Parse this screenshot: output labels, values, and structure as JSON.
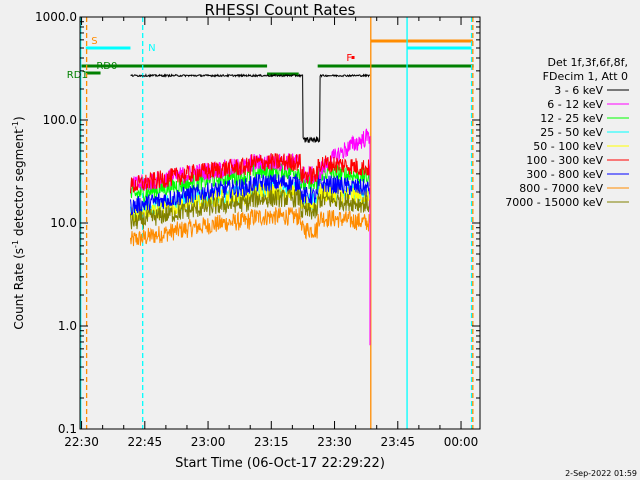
{
  "chart_data": {
    "type": "line",
    "title": "RHESSI Count Rates",
    "xlabel": "Start Time (06-Oct-17 22:29:22)",
    "ylabel_main": "Count Rate (s",
    "ylabel_exp": "-1",
    "ylabel_mid": " detector segment",
    "ylabel_end": ")",
    "yscale": "log",
    "xlim_minutes": [
      -0.37,
      94.5
    ],
    "ylim": [
      0.1,
      1000.0
    ],
    "x_ticks": [
      {
        "min": 0,
        "label": "22:30"
      },
      {
        "min": 15,
        "label": "22:45"
      },
      {
        "min": 30,
        "label": "23:00"
      },
      {
        "min": 45,
        "label": "23:15"
      },
      {
        "min": 60,
        "label": "23:30"
      },
      {
        "min": 75,
        "label": "23:45"
      },
      {
        "min": 90,
        "label": "00:00"
      }
    ],
    "y_ticks": [
      {
        "value": 0.1,
        "label": "0.1"
      },
      {
        "value": 1.0,
        "label": "1.0"
      },
      {
        "value": 10.0,
        "label": "10.0"
      },
      {
        "value": 100.0,
        "label": "100.0"
      },
      {
        "value": 1000.0,
        "label": "1000.0"
      }
    ],
    "legend_header": [
      "Det 1f,3f,6f,8f,",
      "FDecim 1, Att 0"
    ],
    "series": [
      {
        "name": "3 - 6 keV",
        "color": "#000000",
        "level": 270
      },
      {
        "name": "6 - 12 keV",
        "color": "#ff00ff",
        "level": 27
      },
      {
        "name": "12 - 25 keV",
        "color": "#00ff00",
        "level": 22
      },
      {
        "name": "25 - 50 keV",
        "color": "#00ffff",
        "level": 15
      },
      {
        "name": "50 - 100 keV",
        "color": "#ffff00",
        "level": 14
      },
      {
        "name": "100 - 300 keV",
        "color": "#ff0000",
        "level": 27
      },
      {
        "name": "300 - 800 keV",
        "color": "#0000ff",
        "level": 17
      },
      {
        "name": "800 - 7000 keV",
        "color": "#ff8c00",
        "level": 8
      },
      {
        "name": "7000 - 15000 keV",
        "color": "#808000",
        "level": 12
      }
    ],
    "data_window_minutes": [
      11.6,
      68.4
    ],
    "dip_window_minutes": [
      52.5,
      56.5
    ],
    "saa_minutes": [
      68.4,
      94
    ],
    "night_lines_minutes": [
      -0.2,
      14.5,
      77.2,
      92.5
    ],
    "orange_lines_minutes": [
      1.2,
      68.6,
      92.8
    ],
    "flags": [
      {
        "label": "S",
        "color": "#ff8c00"
      },
      {
        "label": "N",
        "color": "#00ffff"
      },
      {
        "label": "RD0",
        "color": "#008000"
      },
      {
        "label": "RD1",
        "color": "#008000"
      },
      {
        "label": "F",
        "color": "#ff0000"
      }
    ],
    "grid": false,
    "legend_position": "right"
  },
  "footer_date": "2-Sep-2022 01:59"
}
